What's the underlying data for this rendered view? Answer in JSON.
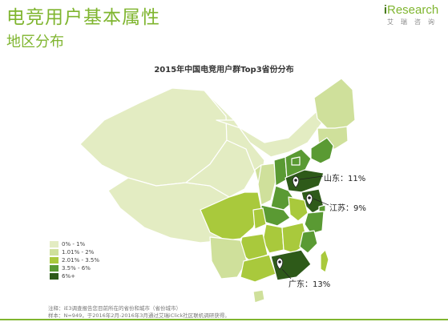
{
  "header": {
    "title": "电竞用户基本属性",
    "subtitle": "地区分布",
    "logo_brand_i": "i",
    "logo_brand_rest": "Research",
    "logo_cn": "艾瑞咨询"
  },
  "chart_data": {
    "type": "choropleth-map",
    "title": "2015年中国电竞用户群Top3省份分布",
    "legend": [
      {
        "label": "0% - 1%",
        "color": "#e3ecc2"
      },
      {
        "label": "1.01% - 2%",
        "color": "#cfe09b"
      },
      {
        "label": "2.01% - 3.5%",
        "color": "#a9c93c"
      },
      {
        "label": "3.5% - 6%",
        "color": "#5a9a33"
      },
      {
        "label": "6%+",
        "color": "#2e5a19"
      }
    ],
    "callouts": [
      {
        "province": "山东",
        "value": 11,
        "label": "山东：11%"
      },
      {
        "province": "江苏",
        "value": 9,
        "label": "江苏：9%"
      },
      {
        "province": "广东",
        "value": 13,
        "label": "广东：13%"
      }
    ]
  },
  "footer": {
    "note1": "注释：iE3调查报告您目前所在的省份和城市（省份城市）",
    "note2": "样本：N=949，于2016年2月-2016年3月通过艾瑞iClick社区联机调研获得。"
  }
}
